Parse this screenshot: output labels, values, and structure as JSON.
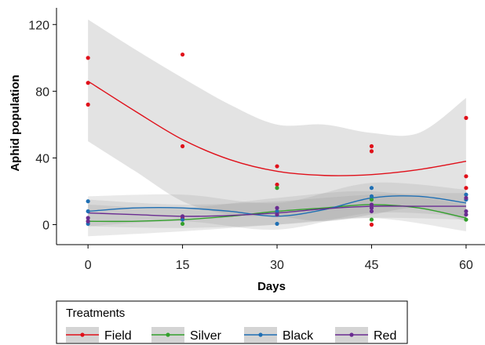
{
  "chart_data": {
    "type": "scatter",
    "xlabel": "Days",
    "ylabel": "Aphid population",
    "xlim": [
      -5,
      63
    ],
    "ylim": [
      -12,
      130
    ],
    "x_ticks": [
      0,
      15,
      30,
      45,
      60
    ],
    "y_ticks": [
      0,
      40,
      80,
      120
    ],
    "grid": false,
    "legend": {
      "title": "Treatments",
      "placement": "bottom"
    },
    "series": [
      {
        "name": "Field",
        "color": "#e0101a",
        "points": [
          {
            "x": 0,
            "y": 100
          },
          {
            "x": 0,
            "y": 85
          },
          {
            "x": 0,
            "y": 72
          },
          {
            "x": 15,
            "y": 102
          },
          {
            "x": 15,
            "y": 47
          },
          {
            "x": 15,
            "y": 4
          },
          {
            "x": 30,
            "y": 35
          },
          {
            "x": 30,
            "y": 24
          },
          {
            "x": 30,
            "y": 8
          },
          {
            "x": 45,
            "y": 47
          },
          {
            "x": 45,
            "y": 44
          },
          {
            "x": 45,
            "y": 0
          },
          {
            "x": 60,
            "y": 64
          },
          {
            "x": 60,
            "y": 29
          },
          {
            "x": 60,
            "y": 22
          }
        ],
        "trend": [
          {
            "x": 0,
            "y": 86
          },
          {
            "x": 7.5,
            "y": 68
          },
          {
            "x": 15,
            "y": 51
          },
          {
            "x": 22.5,
            "y": 39
          },
          {
            "x": 30,
            "y": 32
          },
          {
            "x": 37.5,
            "y": 29.5
          },
          {
            "x": 45,
            "y": 30
          },
          {
            "x": 52.5,
            "y": 33
          },
          {
            "x": 60,
            "y": 38
          }
        ],
        "band_upper": [
          {
            "x": 0,
            "y": 123
          },
          {
            "x": 7.5,
            "y": 105
          },
          {
            "x": 15,
            "y": 88
          },
          {
            "x": 22.5,
            "y": 72
          },
          {
            "x": 30,
            "y": 60
          },
          {
            "x": 37.5,
            "y": 60
          },
          {
            "x": 45,
            "y": 55
          },
          {
            "x": 52.5,
            "y": 55
          },
          {
            "x": 60,
            "y": 76
          }
        ],
        "band_lower": [
          {
            "x": 0,
            "y": 50
          },
          {
            "x": 7.5,
            "y": 32
          },
          {
            "x": 15,
            "y": 14
          },
          {
            "x": 22.5,
            "y": 6
          },
          {
            "x": 30,
            "y": 5
          },
          {
            "x": 37.5,
            "y": 2
          },
          {
            "x": 45,
            "y": 6
          },
          {
            "x": 52.5,
            "y": 10
          },
          {
            "x": 60,
            "y": 2
          }
        ]
      },
      {
        "name": "Silver",
        "color": "#33a02c",
        "points": [
          {
            "x": 0,
            "y": 2
          },
          {
            "x": 15,
            "y": 0.5
          },
          {
            "x": 30,
            "y": 22
          },
          {
            "x": 45,
            "y": 3
          },
          {
            "x": 45,
            "y": 15
          },
          {
            "x": 60,
            "y": 3
          }
        ],
        "trend": [
          {
            "x": 0,
            "y": 2
          },
          {
            "x": 7.5,
            "y": 2
          },
          {
            "x": 15,
            "y": 3
          },
          {
            "x": 22.5,
            "y": 5
          },
          {
            "x": 30,
            "y": 8
          },
          {
            "x": 37.5,
            "y": 10
          },
          {
            "x": 45,
            "y": 12
          },
          {
            "x": 52.5,
            "y": 10
          },
          {
            "x": 60,
            "y": 4
          }
        ],
        "band_upper": [
          {
            "x": 0,
            "y": 12
          },
          {
            "x": 15,
            "y": 10
          },
          {
            "x": 30,
            "y": 16
          },
          {
            "x": 45,
            "y": 20
          },
          {
            "x": 60,
            "y": 12
          }
        ],
        "band_lower": [
          {
            "x": 0,
            "y": -7
          },
          {
            "x": 15,
            "y": -4
          },
          {
            "x": 30,
            "y": 0
          },
          {
            "x": 45,
            "y": 4
          },
          {
            "x": 60,
            "y": -4
          }
        ]
      },
      {
        "name": "Black",
        "color": "#1f6fb4",
        "points": [
          {
            "x": 0,
            "y": 14
          },
          {
            "x": 0,
            "y": 8
          },
          {
            "x": 0,
            "y": 0.5
          },
          {
            "x": 15,
            "y": 3
          },
          {
            "x": 30,
            "y": 0.5
          },
          {
            "x": 30,
            "y": 8
          },
          {
            "x": 45,
            "y": 22
          },
          {
            "x": 45,
            "y": 17
          },
          {
            "x": 60,
            "y": 18
          },
          {
            "x": 60,
            "y": 15
          }
        ],
        "trend": [
          {
            "x": 0,
            "y": 8
          },
          {
            "x": 7.5,
            "y": 10
          },
          {
            "x": 15,
            "y": 10
          },
          {
            "x": 22.5,
            "y": 8
          },
          {
            "x": 30,
            "y": 5
          },
          {
            "x": 37.5,
            "y": 9
          },
          {
            "x": 45,
            "y": 16
          },
          {
            "x": 52.5,
            "y": 17
          },
          {
            "x": 60,
            "y": 13
          }
        ],
        "band_upper": [
          {
            "x": 0,
            "y": 17
          },
          {
            "x": 15,
            "y": 18
          },
          {
            "x": 30,
            "y": 13
          },
          {
            "x": 45,
            "y": 25
          },
          {
            "x": 60,
            "y": 21
          }
        ],
        "band_lower": [
          {
            "x": 0,
            "y": -1
          },
          {
            "x": 15,
            "y": 2
          },
          {
            "x": 30,
            "y": -3
          },
          {
            "x": 45,
            "y": 7
          },
          {
            "x": 60,
            "y": 5
          }
        ]
      },
      {
        "name": "Red",
        "color": "#6a2c91",
        "points": [
          {
            "x": 0,
            "y": 4
          },
          {
            "x": 0,
            "y": 2
          },
          {
            "x": 15,
            "y": 5
          },
          {
            "x": 30,
            "y": 10
          },
          {
            "x": 30,
            "y": 6
          },
          {
            "x": 45,
            "y": 12
          },
          {
            "x": 45,
            "y": 10
          },
          {
            "x": 45,
            "y": 8
          },
          {
            "x": 60,
            "y": 16
          },
          {
            "x": 60,
            "y": 8
          },
          {
            "x": 60,
            "y": 6
          }
        ],
        "trend": [
          {
            "x": 0,
            "y": 7
          },
          {
            "x": 7.5,
            "y": 6
          },
          {
            "x": 15,
            "y": 5
          },
          {
            "x": 22.5,
            "y": 5.5
          },
          {
            "x": 30,
            "y": 7
          },
          {
            "x": 37.5,
            "y": 9.5
          },
          {
            "x": 45,
            "y": 11
          },
          {
            "x": 52.5,
            "y": 11
          },
          {
            "x": 60,
            "y": 11
          }
        ],
        "band_upper": [
          {
            "x": 0,
            "y": 15
          },
          {
            "x": 15,
            "y": 12
          },
          {
            "x": 30,
            "y": 14
          },
          {
            "x": 45,
            "y": 18
          },
          {
            "x": 60,
            "y": 19
          }
        ],
        "band_lower": [
          {
            "x": 0,
            "y": -1
          },
          {
            "x": 15,
            "y": -2
          },
          {
            "x": 30,
            "y": 0
          },
          {
            "x": 45,
            "y": 4
          },
          {
            "x": 60,
            "y": 3
          }
        ]
      }
    ]
  }
}
